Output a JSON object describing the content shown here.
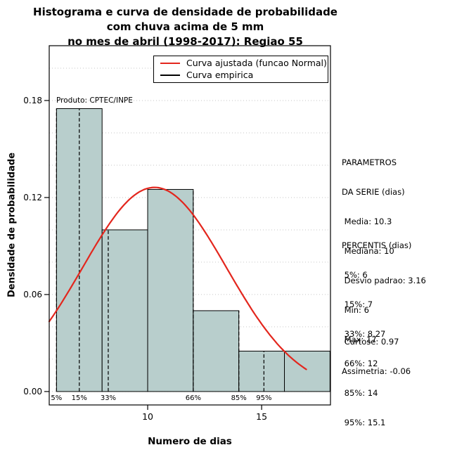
{
  "title": {
    "line1": "Histograma e curva de densidade de probabilidade",
    "line2": "com chuva acima de 5 mm",
    "line3": "no mes de abril (1998-2017): Regiao 55"
  },
  "panel": {
    "parametros": [
      "PARAMETROS",
      "DA SERIE (dias)",
      " Media: 10.3",
      " Mediana: 10",
      " Desvio padrao: 3.16",
      " Min: 6",
      " Max: 17"
    ],
    "percentis": [
      "PERCENTIS (dias)",
      " 5%: 6",
      " 15%: 7",
      " 33%: 8.27",
      " 66%: 12",
      " 85%: 14",
      " 95%: 15.1"
    ],
    "momentos": [
      " Curtose: 0.97",
      "Assimetria: -0.06"
    ]
  },
  "chart_data": {
    "type": "bar",
    "title": "Histograma e curva de densidade de probabilidade com chuva acima de 5 mm no mes de abril (1998-2017): Regiao 55",
    "xlabel": "Numero de dias",
    "ylabel": "Densidade de probabilidade",
    "annotation": "Produto: CPTEC/INPE",
    "legend": [
      "Curva ajustada (funcao Normal)",
      "Curva empirica"
    ],
    "legend_position": "top",
    "grid": true,
    "grid_step": 0.02,
    "xlim": [
      5.68,
      18.02
    ],
    "ylim": [
      -0.0083,
      0.2139
    ],
    "x_ticks": [
      10,
      15
    ],
    "x_tick_labels": [
      "10",
      "15"
    ],
    "y_ticks": [
      0,
      0.06,
      0.12,
      0.18
    ],
    "y_tick_labels": [
      "0.00",
      "0.06",
      "0.12",
      "0.18"
    ],
    "histogram": {
      "breaks": [
        6,
        8,
        10,
        12,
        14,
        16,
        18
      ],
      "densities": [
        0.175,
        0.1,
        0.125,
        0.05,
        0.025,
        0.025
      ]
    },
    "normal_fit": {
      "mean": 10.3,
      "sd": 3.16,
      "x_range": [
        5.68,
        17
      ]
    },
    "percentile_lines": [
      {
        "label": "5%",
        "x": 6,
        "height": 0.175
      },
      {
        "label": "15%",
        "x": 7,
        "height": 0.175
      },
      {
        "label": "33%",
        "x": 8.27,
        "height": 0.1
      },
      {
        "label": "66%",
        "x": 12,
        "height": 0.125
      },
      {
        "label": "85%",
        "x": 14,
        "height": 0.05
      },
      {
        "label": "95%",
        "x": 15.1,
        "height": 0.025
      }
    ],
    "colors": {
      "bar_fill": "#b8cecc",
      "bar_stroke": "#000000",
      "fitted_curve": "#e3261d",
      "empirical_curve": "#000000",
      "grid": "#c6c6c6"
    }
  }
}
